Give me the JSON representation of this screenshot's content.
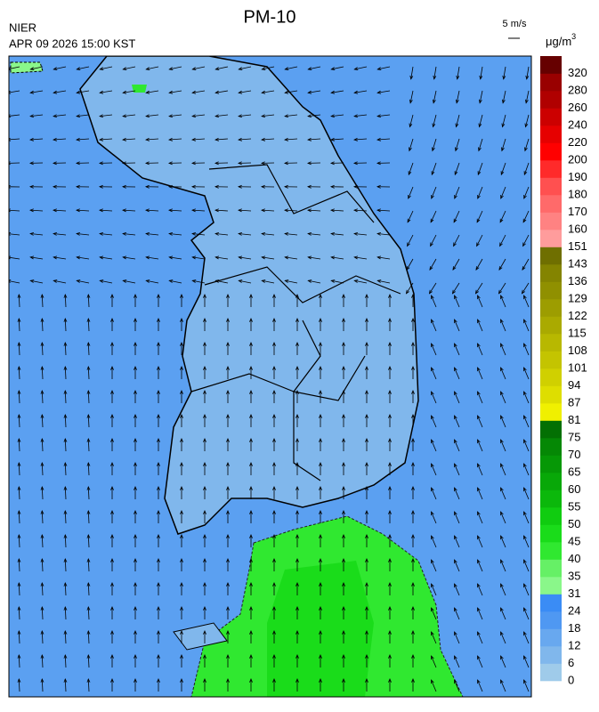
{
  "header": {
    "title": "PM-10",
    "agency": "NIER",
    "timestamp": "APR 09 2026 15:00 KST",
    "wind_scale": "5 m/s"
  },
  "colorbar": {
    "unit_base": "μg/m",
    "unit_exponent": "3",
    "labels": [
      0,
      6,
      12,
      18,
      24,
      31,
      35,
      40,
      45,
      50,
      55,
      60,
      65,
      70,
      75,
      81,
      87,
      94,
      101,
      108,
      115,
      122,
      129,
      136,
      143,
      151,
      160,
      170,
      180,
      190,
      200,
      220,
      240,
      260,
      280,
      320
    ],
    "colors": [
      "#9fcbea",
      "#80b7ec",
      "#68a8ef",
      "#4f98f2",
      "#3a8cf5",
      "#8af78a",
      "#66f066",
      "#30e830",
      "#1adc1a",
      "#10cc10",
      "#0bb80b",
      "#08a808",
      "#069806",
      "#058805",
      "#037003",
      "#f0f000",
      "#dede00",
      "#d0d000",
      "#c4c400",
      "#b8b800",
      "#aaaa00",
      "#9d9d00",
      "#909000",
      "#848400",
      "#6f6f00",
      "#ff9c9c",
      "#ff8282",
      "#ff6a6a",
      "#ff5050",
      "#ff2a2a",
      "#ff0000",
      "#e60000",
      "#cc0000",
      "#b00000",
      "#990000",
      "#660000"
    ]
  }
}
